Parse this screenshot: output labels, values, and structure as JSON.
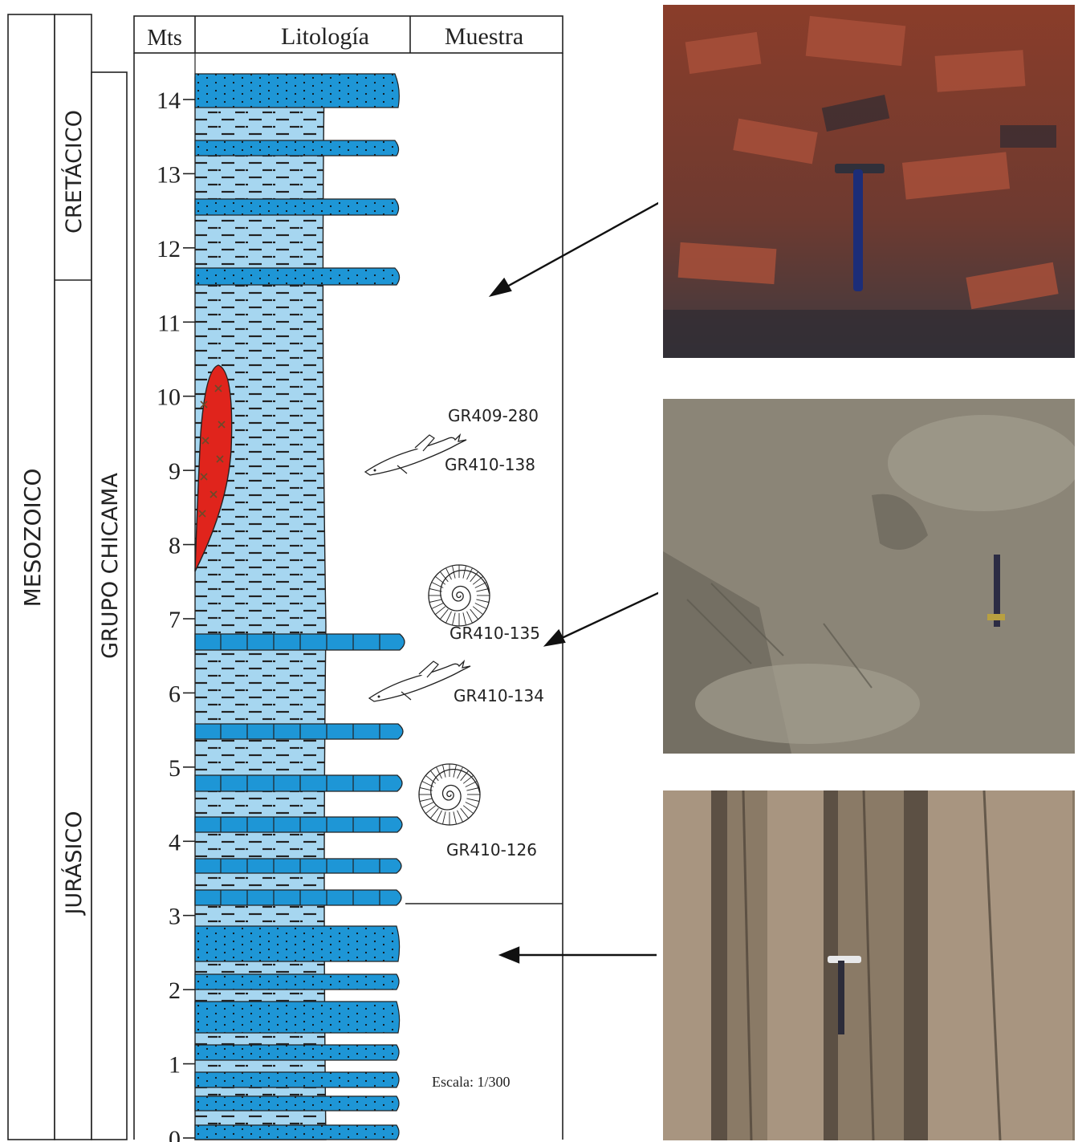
{
  "headers": {
    "depth": "Mts",
    "lithology": "Litología",
    "sample": "Muestra"
  },
  "era": "MESOZOICO",
  "periods": {
    "upper": "CRETÁCICO",
    "lower": "JURÁSICO"
  },
  "group": "GRUPO CHICAMA",
  "depth_ticks": [
    "0",
    "1",
    "2",
    "3",
    "4",
    "5",
    "6",
    "7",
    "8",
    "9",
    "10",
    "11",
    "12",
    "13",
    "14"
  ],
  "samples": {
    "s1": "GR409-280",
    "s2": "GR410-138",
    "s3": "GR410-135",
    "s4": "GR410-134",
    "s5": "GR410-126"
  },
  "scale": "Escala: 1/300",
  "colors": {
    "sandstone": "#1e96d6",
    "shale_bg": "#a6d6f0",
    "intrusion": "#e0241c"
  }
}
